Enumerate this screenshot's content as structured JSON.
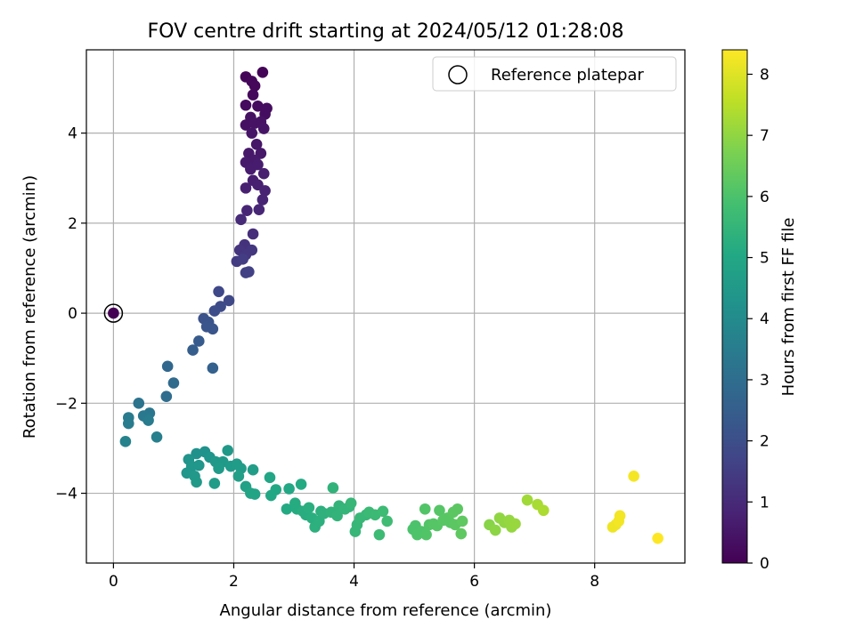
{
  "chart_data": {
    "type": "scatter",
    "title": "FOV centre drift starting at 2024/05/12 01:28:08",
    "xlabel": "Angular distance from reference (arcmin)",
    "ylabel": "Rotation from reference (arcmin)",
    "xlim": [
      -0.45,
      9.5
    ],
    "ylim": [
      -5.55,
      5.85
    ],
    "xticks": [
      0,
      2,
      4,
      6,
      8
    ],
    "yticks": [
      -4,
      -2,
      0,
      2,
      4
    ],
    "grid": true,
    "legend": {
      "placement": "top-right",
      "entries": [
        "Reference platepar"
      ]
    },
    "reference_point": {
      "x": 0,
      "y": 0
    },
    "colorbar": {
      "label": "Hours from first FF file",
      "colormap": "viridis",
      "range": [
        0,
        8.4
      ],
      "ticks": [
        0,
        1,
        2,
        3,
        4,
        5,
        6,
        7,
        8
      ]
    },
    "points": [
      {
        "x": 0.0,
        "y": 0.0,
        "c": 0.0
      },
      {
        "x": 2.2,
        "y": 5.25,
        "c": 0.1
      },
      {
        "x": 2.48,
        "y": 5.35,
        "c": 0.1
      },
      {
        "x": 2.3,
        "y": 5.15,
        "c": 0.15
      },
      {
        "x": 2.35,
        "y": 5.05,
        "c": 0.15
      },
      {
        "x": 2.32,
        "y": 4.85,
        "c": 0.2
      },
      {
        "x": 2.2,
        "y": 4.62,
        "c": 0.25
      },
      {
        "x": 2.4,
        "y": 4.6,
        "c": 0.25
      },
      {
        "x": 2.55,
        "y": 4.55,
        "c": 0.3
      },
      {
        "x": 2.52,
        "y": 4.42,
        "c": 0.3
      },
      {
        "x": 2.28,
        "y": 4.35,
        "c": 0.35
      },
      {
        "x": 2.2,
        "y": 4.18,
        "c": 0.35
      },
      {
        "x": 2.35,
        "y": 4.22,
        "c": 0.4
      },
      {
        "x": 2.45,
        "y": 4.25,
        "c": 0.4
      },
      {
        "x": 2.5,
        "y": 4.1,
        "c": 0.45
      },
      {
        "x": 2.3,
        "y": 4.0,
        "c": 0.45
      },
      {
        "x": 2.38,
        "y": 3.75,
        "c": 0.5
      },
      {
        "x": 2.25,
        "y": 3.55,
        "c": 0.55
      },
      {
        "x": 2.45,
        "y": 3.55,
        "c": 0.55
      },
      {
        "x": 2.35,
        "y": 3.4,
        "c": 0.6
      },
      {
        "x": 2.2,
        "y": 3.35,
        "c": 0.6
      },
      {
        "x": 2.28,
        "y": 3.2,
        "c": 0.65
      },
      {
        "x": 2.4,
        "y": 3.3,
        "c": 0.65
      },
      {
        "x": 2.5,
        "y": 3.1,
        "c": 0.7
      },
      {
        "x": 2.32,
        "y": 2.95,
        "c": 0.7
      },
      {
        "x": 2.4,
        "y": 2.85,
        "c": 0.75
      },
      {
        "x": 2.2,
        "y": 2.78,
        "c": 0.75
      },
      {
        "x": 2.52,
        "y": 2.72,
        "c": 0.8
      },
      {
        "x": 2.48,
        "y": 2.52,
        "c": 0.85
      },
      {
        "x": 2.42,
        "y": 2.3,
        "c": 0.9
      },
      {
        "x": 2.22,
        "y": 2.28,
        "c": 0.9
      },
      {
        "x": 2.12,
        "y": 2.08,
        "c": 1.0
      },
      {
        "x": 2.32,
        "y": 1.76,
        "c": 1.1
      },
      {
        "x": 2.18,
        "y": 1.52,
        "c": 1.2
      },
      {
        "x": 2.1,
        "y": 1.4,
        "c": 1.25
      },
      {
        "x": 2.3,
        "y": 1.4,
        "c": 1.3
      },
      {
        "x": 2.2,
        "y": 1.3,
        "c": 1.35
      },
      {
        "x": 2.05,
        "y": 1.15,
        "c": 1.45
      },
      {
        "x": 2.15,
        "y": 1.2,
        "c": 1.5
      },
      {
        "x": 2.2,
        "y": 0.9,
        "c": 1.6
      },
      {
        "x": 2.25,
        "y": 0.92,
        "c": 1.6
      },
      {
        "x": 1.75,
        "y": 0.48,
        "c": 1.8
      },
      {
        "x": 1.92,
        "y": 0.28,
        "c": 1.85
      },
      {
        "x": 1.78,
        "y": 0.15,
        "c": 1.9
      },
      {
        "x": 1.68,
        "y": 0.05,
        "c": 1.95
      },
      {
        "x": 1.5,
        "y": -0.12,
        "c": 2.1
      },
      {
        "x": 1.58,
        "y": -0.2,
        "c": 2.15
      },
      {
        "x": 1.65,
        "y": -0.35,
        "c": 2.2
      },
      {
        "x": 1.55,
        "y": -0.3,
        "c": 2.2
      },
      {
        "x": 1.42,
        "y": -0.62,
        "c": 2.4
      },
      {
        "x": 1.32,
        "y": -0.82,
        "c": 2.5
      },
      {
        "x": 1.65,
        "y": -1.22,
        "c": 2.6
      },
      {
        "x": 0.9,
        "y": -1.18,
        "c": 2.8
      },
      {
        "x": 1.0,
        "y": -1.55,
        "c": 2.9
      },
      {
        "x": 0.88,
        "y": -1.85,
        "c": 3.0
      },
      {
        "x": 0.42,
        "y": -2.0,
        "c": 3.2
      },
      {
        "x": 0.6,
        "y": -2.22,
        "c": 3.3
      },
      {
        "x": 0.55,
        "y": -2.3,
        "c": 3.35
      },
      {
        "x": 0.5,
        "y": -2.28,
        "c": 3.35
      },
      {
        "x": 0.25,
        "y": -2.32,
        "c": 3.45
      },
      {
        "x": 0.58,
        "y": -2.38,
        "c": 3.45
      },
      {
        "x": 0.25,
        "y": -2.45,
        "c": 3.5
      },
      {
        "x": 0.72,
        "y": -2.75,
        "c": 3.6
      },
      {
        "x": 0.2,
        "y": -2.85,
        "c": 3.7
      },
      {
        "x": 1.38,
        "y": -3.12,
        "c": 4.2
      },
      {
        "x": 1.52,
        "y": -3.08,
        "c": 4.25
      },
      {
        "x": 1.25,
        "y": -3.25,
        "c": 4.3
      },
      {
        "x": 1.6,
        "y": -3.2,
        "c": 4.3
      },
      {
        "x": 1.3,
        "y": -3.4,
        "c": 4.4
      },
      {
        "x": 1.42,
        "y": -3.38,
        "c": 4.4
      },
      {
        "x": 1.7,
        "y": -3.3,
        "c": 4.45
      },
      {
        "x": 1.9,
        "y": -3.05,
        "c": 4.5
      },
      {
        "x": 1.82,
        "y": -3.3,
        "c": 4.5
      },
      {
        "x": 1.75,
        "y": -3.45,
        "c": 4.55
      },
      {
        "x": 1.95,
        "y": -3.4,
        "c": 4.55
      },
      {
        "x": 2.05,
        "y": -3.35,
        "c": 4.6
      },
      {
        "x": 2.12,
        "y": -3.45,
        "c": 4.6
      },
      {
        "x": 2.32,
        "y": -3.48,
        "c": 4.65
      },
      {
        "x": 1.22,
        "y": -3.55,
        "c": 4.4
      },
      {
        "x": 1.35,
        "y": -3.62,
        "c": 4.45
      },
      {
        "x": 1.38,
        "y": -3.75,
        "c": 4.5
      },
      {
        "x": 1.68,
        "y": -3.78,
        "c": 4.6
      },
      {
        "x": 2.08,
        "y": -3.62,
        "c": 4.7
      },
      {
        "x": 2.2,
        "y": -3.85,
        "c": 4.8
      },
      {
        "x": 2.28,
        "y": -4.0,
        "c": 4.9
      },
      {
        "x": 2.35,
        "y": -4.02,
        "c": 4.9
      },
      {
        "x": 2.6,
        "y": -3.65,
        "c": 4.95
      },
      {
        "x": 2.7,
        "y": -3.92,
        "c": 5.0
      },
      {
        "x": 2.62,
        "y": -4.05,
        "c": 5.0
      },
      {
        "x": 2.92,
        "y": -3.9,
        "c": 5.05
      },
      {
        "x": 3.12,
        "y": -3.8,
        "c": 5.1
      },
      {
        "x": 2.88,
        "y": -4.35,
        "c": 5.1
      },
      {
        "x": 3.02,
        "y": -4.22,
        "c": 5.15
      },
      {
        "x": 3.05,
        "y": -4.35,
        "c": 5.15
      },
      {
        "x": 3.15,
        "y": -4.4,
        "c": 5.2
      },
      {
        "x": 3.2,
        "y": -4.48,
        "c": 5.2
      },
      {
        "x": 3.25,
        "y": -4.32,
        "c": 5.25
      },
      {
        "x": 3.3,
        "y": -4.55,
        "c": 5.25
      },
      {
        "x": 3.35,
        "y": -4.75,
        "c": 5.3
      },
      {
        "x": 3.42,
        "y": -4.62,
        "c": 5.3
      },
      {
        "x": 3.45,
        "y": -4.4,
        "c": 5.3
      },
      {
        "x": 3.5,
        "y": -4.45,
        "c": 5.35
      },
      {
        "x": 3.62,
        "y": -4.42,
        "c": 5.4
      },
      {
        "x": 3.65,
        "y": -3.88,
        "c": 5.4
      },
      {
        "x": 3.72,
        "y": -4.5,
        "c": 5.45
      },
      {
        "x": 3.75,
        "y": -4.28,
        "c": 5.45
      },
      {
        "x": 3.85,
        "y": -4.35,
        "c": 5.5
      },
      {
        "x": 3.92,
        "y": -4.3,
        "c": 5.5
      },
      {
        "x": 3.95,
        "y": -4.22,
        "c": 5.55
      },
      {
        "x": 4.05,
        "y": -4.7,
        "c": 5.55
      },
      {
        "x": 4.02,
        "y": -4.85,
        "c": 5.55
      },
      {
        "x": 4.1,
        "y": -4.55,
        "c": 5.6
      },
      {
        "x": 4.2,
        "y": -4.48,
        "c": 5.6
      },
      {
        "x": 4.25,
        "y": -4.42,
        "c": 5.65
      },
      {
        "x": 4.35,
        "y": -4.48,
        "c": 5.65
      },
      {
        "x": 4.42,
        "y": -4.92,
        "c": 5.7
      },
      {
        "x": 4.48,
        "y": -4.4,
        "c": 5.7
      },
      {
        "x": 4.55,
        "y": -4.62,
        "c": 5.75
      },
      {
        "x": 4.98,
        "y": -4.8,
        "c": 6.0
      },
      {
        "x": 5.02,
        "y": -4.72,
        "c": 6.0
      },
      {
        "x": 5.05,
        "y": -4.92,
        "c": 6.05
      },
      {
        "x": 5.12,
        "y": -4.85,
        "c": 6.05
      },
      {
        "x": 5.18,
        "y": -4.35,
        "c": 6.1
      },
      {
        "x": 5.2,
        "y": -4.92,
        "c": 6.1
      },
      {
        "x": 5.25,
        "y": -4.7,
        "c": 6.1
      },
      {
        "x": 5.32,
        "y": -4.68,
        "c": 6.15
      },
      {
        "x": 5.38,
        "y": -4.72,
        "c": 6.15
      },
      {
        "x": 5.42,
        "y": -4.38,
        "c": 6.15
      },
      {
        "x": 5.48,
        "y": -4.6,
        "c": 6.2
      },
      {
        "x": 5.55,
        "y": -4.55,
        "c": 6.2
      },
      {
        "x": 5.6,
        "y": -4.65,
        "c": 6.2
      },
      {
        "x": 5.65,
        "y": -4.42,
        "c": 6.25
      },
      {
        "x": 5.68,
        "y": -4.7,
        "c": 6.25
      },
      {
        "x": 5.72,
        "y": -4.35,
        "c": 6.25
      },
      {
        "x": 5.8,
        "y": -4.62,
        "c": 6.3
      },
      {
        "x": 5.78,
        "y": -4.9,
        "c": 6.3
      },
      {
        "x": 6.25,
        "y": -4.7,
        "c": 6.9
      },
      {
        "x": 6.35,
        "y": -4.82,
        "c": 6.95
      },
      {
        "x": 6.42,
        "y": -4.55,
        "c": 7.0
      },
      {
        "x": 6.5,
        "y": -4.65,
        "c": 7.0
      },
      {
        "x": 6.58,
        "y": -4.6,
        "c": 7.05
      },
      {
        "x": 6.62,
        "y": -4.75,
        "c": 7.05
      },
      {
        "x": 6.68,
        "y": -4.68,
        "c": 7.1
      },
      {
        "x": 6.88,
        "y": -4.15,
        "c": 7.2
      },
      {
        "x": 7.05,
        "y": -4.25,
        "c": 7.3
      },
      {
        "x": 7.15,
        "y": -4.38,
        "c": 7.35
      },
      {
        "x": 8.3,
        "y": -4.75,
        "c": 8.2
      },
      {
        "x": 8.35,
        "y": -4.7,
        "c": 8.2
      },
      {
        "x": 8.4,
        "y": -4.62,
        "c": 8.25
      },
      {
        "x": 8.42,
        "y": -4.5,
        "c": 8.25
      },
      {
        "x": 8.65,
        "y": -3.62,
        "c": 8.3
      },
      {
        "x": 9.05,
        "y": -5.0,
        "c": 8.4
      }
    ]
  }
}
